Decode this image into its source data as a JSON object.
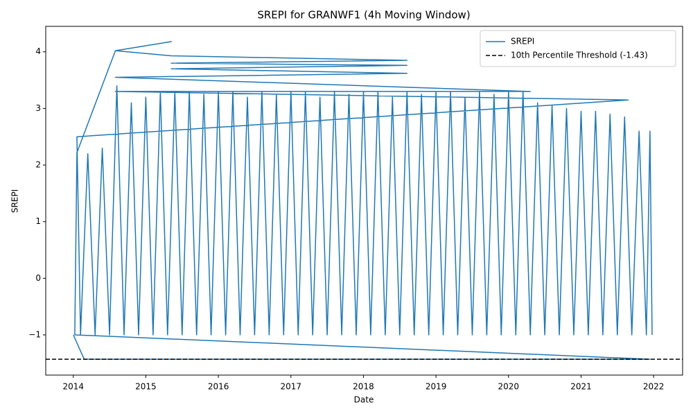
{
  "chart_data": {
    "type": "line",
    "title": "SREPI for GRANWF1 (4h Moving Window)",
    "xlabel": "Date",
    "ylabel": "SREPI",
    "series": [
      {
        "name": "SREPI",
        "color": "#1f77b4",
        "x": [
          2014.0,
          2014.15,
          2021.95,
          2014.02,
          2014.05,
          2014.58,
          2015.35,
          2014.58,
          2015.35,
          2018.6,
          2015.35,
          2018.6,
          2015.35,
          2018.6,
          2014.58,
          2020.3,
          2014.58,
          2021.65,
          2014.05,
          2014.1,
          2014.2,
          2014.3,
          2014.4,
          2014.5,
          2014.6,
          2014.7,
          2014.8,
          2014.9,
          2015.0,
          2015.1,
          2015.2,
          2015.3,
          2015.4,
          2015.5,
          2015.6,
          2015.7,
          2015.8,
          2015.9,
          2016.0,
          2016.1,
          2016.2,
          2016.3,
          2016.4,
          2016.5,
          2016.6,
          2016.7,
          2016.8,
          2016.9,
          2017.0,
          2017.1,
          2017.2,
          2017.3,
          2017.4,
          2017.5,
          2017.6,
          2017.7,
          2017.8,
          2017.9,
          2018.0,
          2018.1,
          2018.2,
          2018.3,
          2018.4,
          2018.5,
          2018.6,
          2018.7,
          2018.8,
          2018.9,
          2019.0,
          2019.1,
          2019.2,
          2019.3,
          2019.4,
          2019.5,
          2019.6,
          2019.7,
          2019.8,
          2019.9,
          2020.0,
          2020.1,
          2020.2,
          2020.3,
          2020.4,
          2020.5,
          2020.6,
          2020.7,
          2020.8,
          2020.9,
          2021.0,
          2021.1,
          2021.2,
          2021.3,
          2021.4,
          2021.5,
          2021.6,
          2021.7,
          2021.8,
          2021.9,
          2021.95,
          2021.98
        ],
        "values": [
          -1.0,
          -1.43,
          -1.43,
          -1.0,
          2.22,
          4.02,
          4.18,
          4.02,
          3.93,
          3.85,
          3.8,
          3.76,
          3.7,
          3.62,
          3.55,
          3.3,
          3.3,
          3.15,
          2.5,
          -1,
          2.2,
          -1,
          2.3,
          -1,
          3.4,
          -1,
          3.1,
          -1,
          3.2,
          -1,
          3.3,
          -1,
          3.3,
          -1,
          3.3,
          -1,
          3.25,
          -1,
          3.3,
          -1,
          3.3,
          -1,
          3.2,
          -1,
          3.3,
          -1,
          3.25,
          -1,
          3.3,
          -1,
          3.3,
          -1,
          3.2,
          -1,
          3.3,
          -1,
          3.25,
          -1,
          3.3,
          -1,
          3.3,
          -1,
          3.2,
          -1,
          3.3,
          -1,
          3.25,
          -1,
          3.3,
          -1,
          3.3,
          -1,
          3.2,
          -1,
          3.3,
          -1,
          3.25,
          -1,
          3.3,
          -1,
          3.3,
          -1,
          3.1,
          -1,
          3.05,
          -1,
          3.0,
          -1,
          2.95,
          -1,
          2.95,
          -1,
          2.9,
          -1,
          2.85,
          -1,
          2.6,
          -1,
          2.6,
          -1
        ]
      }
    ],
    "hlines": [
      {
        "name": "10th Percentile Threshold (-1.43)",
        "value": -1.43,
        "color": "#000000",
        "style": "dashed"
      }
    ],
    "xlim": [
      2013.62,
      2022.4
    ],
    "xticks": [
      2014,
      2015,
      2016,
      2017,
      2018,
      2019,
      2020,
      2021,
      2022
    ],
    "ylim": [
      -1.71,
      4.45
    ],
    "yticks": [
      {
        "value": -1,
        "label": "−1"
      },
      0,
      1,
      2,
      3,
      4
    ],
    "legend": "upper right"
  }
}
